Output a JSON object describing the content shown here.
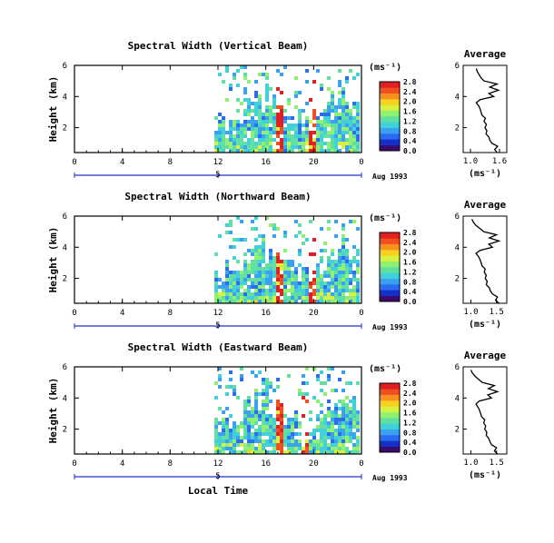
{
  "colors": {
    "scale": [
      "#3a0a6e",
      "#1530c8",
      "#2a6cf0",
      "#3aa0f0",
      "#40d0d8",
      "#60e0a0",
      "#90f070",
      "#d8f040",
      "#f8d020",
      "#f89020",
      "#f05020",
      "#e02020"
    ],
    "average_line": "#000000",
    "date_axis": "#2030c0"
  },
  "chart_data": [
    {
      "type": "heatmap",
      "title": "Spectral Width (Vertical Beam)",
      "ylabel": "Height (km)",
      "ylim": [
        0.4,
        6
      ],
      "y_ticks": [
        "6",
        "4",
        "2"
      ],
      "x_ticks": [
        "0",
        "4",
        "8",
        "12",
        "16",
        "20",
        "0"
      ],
      "xlim": [
        0,
        24
      ],
      "date_label": "Aug 1993",
      "date_marker": "5",
      "colorbar_unit": "(ms⁻¹)",
      "colorbar_ticks": [
        "2.8",
        "2.4",
        "2.0",
        "1.6",
        "1.2",
        "0.8",
        "0.4",
        "0.0"
      ],
      "data_start_hour": 11.7,
      "strong_columns": [
        {
          "start": 16.6,
          "end": 17.3,
          "top": 4.7
        },
        {
          "start": 19.5,
          "end": 20.0,
          "top": 5.4
        }
      ],
      "average": {
        "title": "Average",
        "xlabel": "(ms⁻¹)",
        "x_ticks": [
          "1.0",
          "1.6"
        ],
        "xlim": [
          0.85,
          1.75
        ],
        "y_ticks": [
          "6",
          "4",
          "2"
        ],
        "ylim": [
          0.4,
          6
        ],
        "height_km": [
          0.4,
          0.6,
          0.8,
          1.0,
          1.2,
          1.4,
          1.6,
          1.8,
          2.0,
          2.2,
          2.4,
          2.6,
          2.8,
          3.0,
          3.2,
          3.4,
          3.6,
          3.8,
          4.0,
          4.2,
          4.4,
          4.6,
          4.8,
          5.0,
          5.2,
          5.4,
          5.6,
          5.8
        ],
        "width_ms": [
          1.55,
          1.5,
          1.56,
          1.44,
          1.4,
          1.38,
          1.32,
          1.34,
          1.3,
          1.33,
          1.28,
          1.31,
          1.24,
          1.22,
          1.2,
          1.17,
          1.12,
          1.2,
          1.48,
          1.38,
          1.58,
          1.4,
          1.55,
          1.28,
          1.22,
          1.18,
          1.14,
          1.12
        ]
      }
    },
    {
      "type": "heatmap",
      "title": "Spectral Width (Northward Beam)",
      "ylabel": "Height (km)",
      "ylim": [
        0.4,
        6
      ],
      "y_ticks": [
        "6",
        "4",
        "2"
      ],
      "x_ticks": [
        "0",
        "4",
        "8",
        "12",
        "16",
        "20",
        "0"
      ],
      "xlim": [
        0,
        24
      ],
      "date_label": "Aug 1993",
      "date_marker": "5",
      "colorbar_unit": "(ms⁻¹)",
      "colorbar_ticks": [
        "2.8",
        "2.4",
        "2.0",
        "1.6",
        "1.2",
        "0.8",
        "0.4",
        "0.0"
      ],
      "data_start_hour": 11.7,
      "strong_columns": [
        {
          "start": 16.6,
          "end": 17.3,
          "top": 4.7
        },
        {
          "start": 19.5,
          "end": 20.0,
          "top": 5.2
        }
      ],
      "average": {
        "title": "Average",
        "xlabel": "(ms⁻¹)",
        "x_ticks": [
          "1.0",
          "1.5"
        ],
        "xlim": [
          0.85,
          1.7
        ],
        "y_ticks": [
          "6",
          "4",
          "2"
        ],
        "ylim": [
          0.4,
          6
        ],
        "height_km": [
          0.4,
          0.6,
          0.8,
          1.0,
          1.2,
          1.4,
          1.6,
          1.8,
          2.0,
          2.2,
          2.4,
          2.6,
          2.8,
          3.0,
          3.2,
          3.4,
          3.6,
          3.8,
          4.0,
          4.2,
          4.4,
          4.6,
          4.8,
          5.0,
          5.2,
          5.4,
          5.6,
          5.8
        ],
        "width_ms": [
          1.55,
          1.48,
          1.52,
          1.42,
          1.38,
          1.36,
          1.3,
          1.32,
          1.28,
          1.3,
          1.26,
          1.28,
          1.22,
          1.2,
          1.18,
          1.15,
          1.1,
          1.18,
          1.42,
          1.35,
          1.55,
          1.36,
          1.5,
          1.25,
          1.18,
          1.1,
          1.05,
          1.02
        ]
      }
    },
    {
      "type": "heatmap",
      "title": "Spectral Width (Eastward Beam)",
      "ylabel": "Height (km)",
      "ylim": [
        0.4,
        6
      ],
      "y_ticks": [
        "6",
        "4",
        "2"
      ],
      "x_ticks": [
        "0",
        "4",
        "8",
        "12",
        "16",
        "20",
        "0"
      ],
      "xlim": [
        0,
        24
      ],
      "date_label": "Aug 1993",
      "date_marker": "5",
      "xlabel": "Local Time",
      "colorbar_unit": "(ms⁻¹)",
      "colorbar_ticks": [
        "2.8",
        "2.4",
        "2.0",
        "1.6",
        "1.2",
        "0.8",
        "0.4",
        "0.0"
      ],
      "data_start_hour": 11.7,
      "strong_columns": [
        {
          "start": 16.6,
          "end": 17.3,
          "top": 4.7
        },
        {
          "start": 18.7,
          "end": 19.3,
          "top": 4.2
        }
      ],
      "average": {
        "title": "Average",
        "xlabel": "(ms⁻¹)",
        "x_ticks": [
          "1.0",
          "1.5"
        ],
        "xlim": [
          0.85,
          1.7
        ],
        "y_ticks": [
          "6",
          "4",
          "2"
        ],
        "ylim": [
          0.4,
          6
        ],
        "height_km": [
          0.4,
          0.6,
          0.8,
          1.0,
          1.2,
          1.4,
          1.6,
          1.8,
          2.0,
          2.2,
          2.4,
          2.6,
          2.8,
          3.0,
          3.2,
          3.4,
          3.6,
          3.8,
          4.0,
          4.2,
          4.4,
          4.6,
          4.8,
          5.0,
          5.2,
          5.4,
          5.6,
          5.8
        ],
        "width_ms": [
          1.52,
          1.46,
          1.5,
          1.4,
          1.37,
          1.35,
          1.3,
          1.31,
          1.27,
          1.29,
          1.25,
          1.27,
          1.21,
          1.19,
          1.17,
          1.14,
          1.1,
          1.16,
          1.4,
          1.33,
          1.52,
          1.34,
          1.46,
          1.22,
          1.15,
          1.08,
          1.03,
          1.0
        ]
      }
    }
  ]
}
